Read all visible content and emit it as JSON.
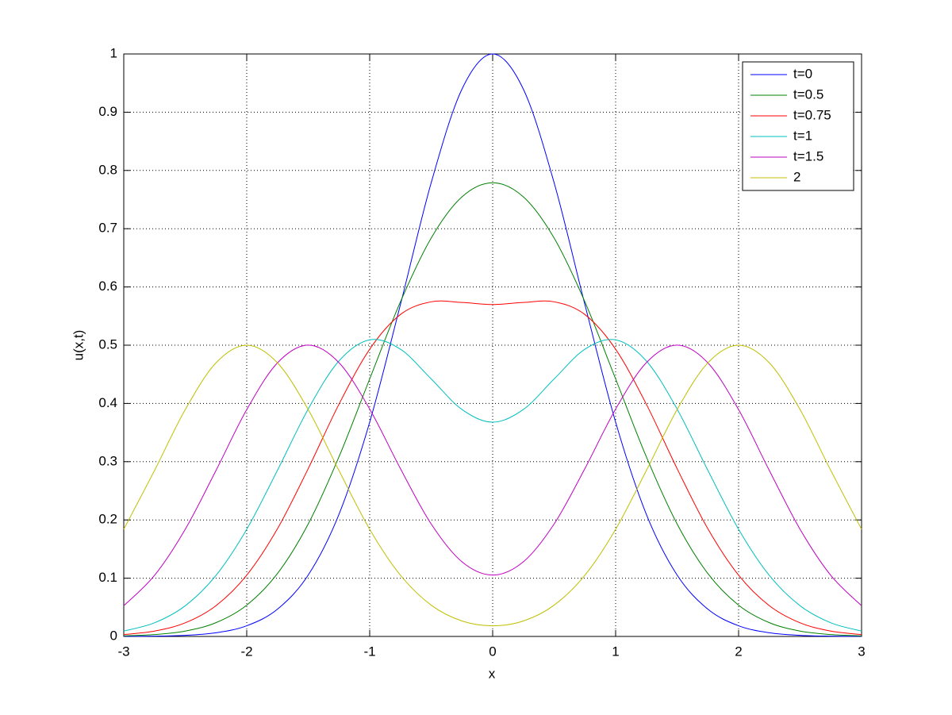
{
  "chart_data": {
    "type": "line",
    "x": [
      -3,
      -2.75,
      -2.5,
      -2.25,
      -2,
      -1.75,
      -1.5,
      -1.25,
      -1,
      -0.75,
      -0.5,
      -0.25,
      0,
      0.25,
      0.5,
      0.75,
      1,
      1.25,
      1.5,
      1.75,
      2,
      2.25,
      2.5,
      2.75,
      3
    ],
    "series": [
      {
        "name": "t=0",
        "color": "#0000ff",
        "values": [
          0.0001,
          0.0005,
          0.0019,
          0.0063,
          0.0183,
          0.0468,
          0.1054,
          0.2096,
          0.3679,
          0.5698,
          0.7788,
          0.9394,
          1,
          0.9394,
          0.7788,
          0.5698,
          0.3679,
          0.2096,
          0.1054,
          0.0468,
          0.0183,
          0.0063,
          0.0019,
          0.0005,
          0.0001
        ]
      },
      {
        "name": "t=0.5",
        "color": "#008000",
        "values": [
          0.001,
          0.0032,
          0.0092,
          0.0237,
          0.0537,
          0.108,
          0.1931,
          0.3083,
          0.4421,
          0.5745,
          0.6839,
          0.7546,
          0.7788,
          0.7546,
          0.6839,
          0.5745,
          0.4421,
          0.3083,
          0.1931,
          0.108,
          0.0537,
          0.0237,
          0.0092,
          0.0032,
          0.001
        ]
      },
      {
        "name": "t=0.75",
        "color": "#ff0000",
        "values": [
          0.0032,
          0.0092,
          0.0234,
          0.0528,
          0.1051,
          0.1849,
          0.2881,
          0.3986,
          0.4931,
          0.5527,
          0.5745,
          0.5734,
          0.5698,
          0.5734,
          0.5745,
          0.5527,
          0.4931,
          0.3986,
          0.2881,
          0.1849,
          0.1051,
          0.0528,
          0.0234,
          0.0092,
          0.0032
        ]
      },
      {
        "name": "t=1",
        "color": "#00bfbf",
        "values": [
          0.0092,
          0.0234,
          0.0527,
          0.1048,
          0.184,
          0.2852,
          0.3904,
          0.4729,
          0.5092,
          0.4931,
          0.4421,
          0.3897,
          0.3679,
          0.3897,
          0.4421,
          0.4931,
          0.5092,
          0.4729,
          0.3904,
          0.2852,
          0.184,
          0.1048,
          0.0527,
          0.0234,
          0.0092
        ]
      },
      {
        "name": "t=1.5",
        "color": "#bf00bf",
        "values": [
          0.0527,
          0.1048,
          0.184,
          0.2849,
          0.3894,
          0.4697,
          0.5001,
          0.47,
          0.3904,
          0.2881,
          0.1931,
          0.1282,
          0.1054,
          0.1282,
          0.1931,
          0.2881,
          0.3904,
          0.47,
          0.5001,
          0.4697,
          0.3894,
          0.2849,
          0.184,
          0.1048,
          0.0527
        ]
      },
      {
        "name": "2",
        "color": "#bfbf00",
        "values": [
          0.184,
          0.2849,
          0.3894,
          0.4697,
          0.5,
          0.4697,
          0.3894,
          0.2849,
          0.184,
          0.1051,
          0.0537,
          0.0266,
          0.0183,
          0.0266,
          0.0537,
          0.1051,
          0.184,
          0.2849,
          0.3894,
          0.4697,
          0.5,
          0.4697,
          0.3894,
          0.2849,
          0.184
        ]
      }
    ],
    "x_label": "x",
    "y_label": "u(x,t)",
    "xlim": [
      -3,
      3
    ],
    "xticks": [
      -3,
      -2,
      -1,
      0,
      1,
      2,
      3
    ],
    "ylim": [
      0,
      1
    ],
    "yticks": [
      0,
      0.1,
      0.2,
      0.3,
      0.4,
      0.5,
      0.6,
      0.7,
      0.8,
      0.9,
      1
    ],
    "grid": true,
    "legend": "top-right"
  }
}
